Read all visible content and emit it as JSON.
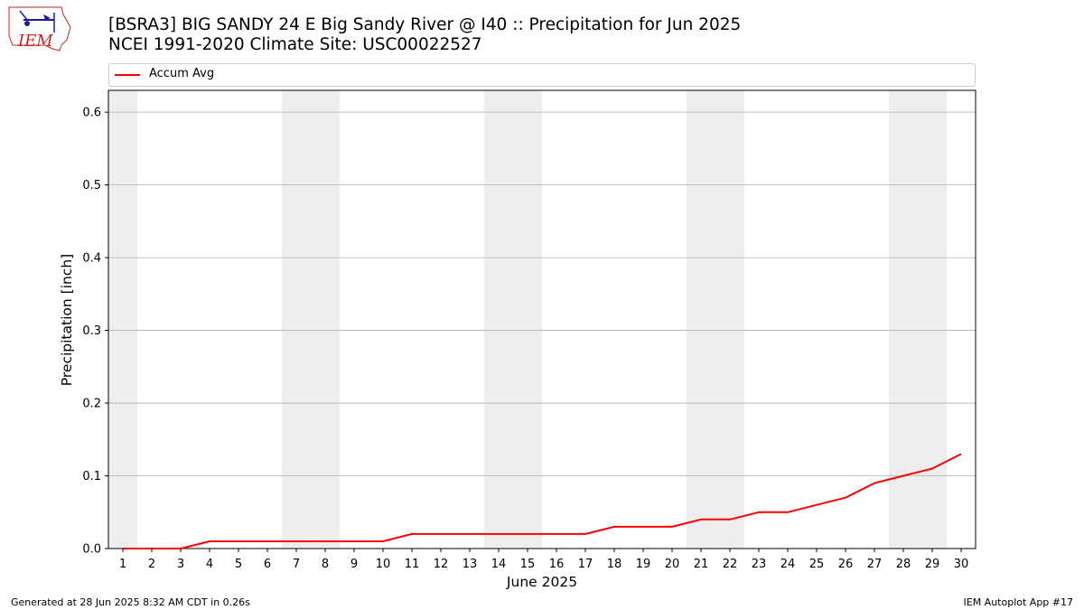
{
  "header": {
    "title_line1": "[BSRA3] BIG SANDY 24 E Big Sandy River @ I40 :: Precipitation for Jun 2025",
    "title_line2": "NCEI 1991-2020 Climate Site: USC00022527",
    "logo_text": "IEM"
  },
  "footer": {
    "left": "Generated at 28 Jun 2025 8:32 AM CDT in 0.26s",
    "right": "IEM Autoplot App #17"
  },
  "colors": {
    "series": "#ff0000",
    "weekend_band": "#eeeeee",
    "grid": "#b0b0b0",
    "logo": "#cc2222"
  },
  "chart_data": {
    "type": "line",
    "xlabel": "June 2025",
    "ylabel": "Precipitation [inch]",
    "x": [
      1,
      2,
      3,
      4,
      5,
      6,
      7,
      8,
      9,
      10,
      11,
      12,
      13,
      14,
      15,
      16,
      17,
      18,
      19,
      20,
      21,
      22,
      23,
      24,
      25,
      26,
      27,
      28,
      29,
      30
    ],
    "series": [
      {
        "name": "Accum Avg",
        "values": [
          0.0,
          0.0,
          0.0,
          0.01,
          0.01,
          0.01,
          0.01,
          0.01,
          0.01,
          0.01,
          0.02,
          0.02,
          0.02,
          0.02,
          0.02,
          0.02,
          0.02,
          0.03,
          0.03,
          0.03,
          0.04,
          0.04,
          0.05,
          0.05,
          0.06,
          0.07,
          0.09,
          0.1,
          0.11,
          0.13
        ]
      }
    ],
    "yticks": [
      0.0,
      0.1,
      0.2,
      0.3,
      0.4,
      0.5,
      0.6
    ],
    "ytick_labels": [
      "0.0",
      "0.1",
      "0.2",
      "0.3",
      "0.4",
      "0.5",
      "0.6"
    ],
    "xlim": [
      0.5,
      30.5
    ],
    "ylim": [
      0,
      0.63
    ],
    "weekend_days": [
      1,
      7,
      8,
      14,
      15,
      21,
      22,
      28,
      29
    ],
    "grid": "horizontal",
    "legend_position": "top"
  }
}
